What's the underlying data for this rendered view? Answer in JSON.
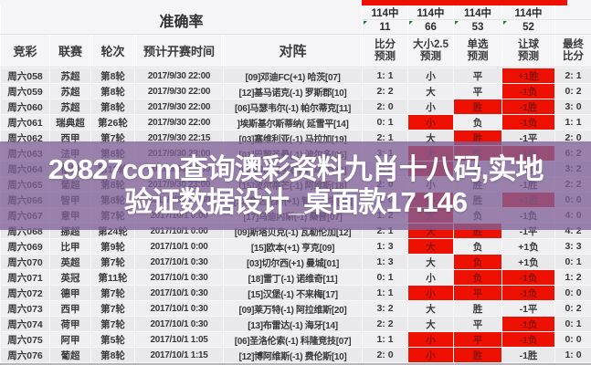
{
  "accuracy": {
    "label": "准确率",
    "total_label": "114中",
    "values": [
      "11",
      "66",
      "53",
      "52"
    ]
  },
  "columns": {
    "jc": "竞彩",
    "league": "联赛",
    "round": "轮次",
    "time": "预计开赛时间",
    "match": "对阵",
    "sp": [
      "比分",
      "预测"
    ],
    "dx": [
      "大小2.5",
      "预测"
    ],
    "dc": [
      "单选",
      "预测"
    ],
    "rq": [
      "让球",
      "预测"
    ],
    "final": [
      "最终",
      "比分"
    ]
  },
  "watermark": {
    "line1": "29827cσm查询澳彩资料九肖十八码,实地",
    "line2": "验证数据设计_桌面款17.146"
  },
  "colors": {
    "hit_cell": "#ee1000",
    "top_bar": "#ee1000",
    "watermark_band": "#806299",
    "comment_marker": "#1e7d32"
  },
  "rows": [
    {
      "jc": "周六058",
      "league": "苏超",
      "round": "第8轮",
      "time": "2017/9/30 22:00",
      "match": "[09]邓迪FC(+1)  哈茨[07]",
      "sp": "1: 1",
      "dx": "小",
      "dc": "平",
      "rq": "+1胜",
      "final": "2: 1",
      "hit": [
        "rq"
      ]
    },
    {
      "jc": "周六059",
      "league": "苏超",
      "round": "第8轮",
      "time": "2017/9/30 22:00",
      "match": "[12]基马诺克(-1)  罗斯郡[10]",
      "sp": "2: 2",
      "dx": "大",
      "dc": "平",
      "rq": "-1负",
      "final": "0: 2",
      "hit": [
        "rq"
      ]
    },
    {
      "jc": "周六060",
      "league": "苏超",
      "round": "第8轮",
      "time": "2017/9/30 22:00",
      "match": "[06]马瑟韦尔(-1)  帕尔蒂克[11]",
      "sp": "2: 0",
      "dx": "小",
      "dc": "胜",
      "rq": "-1胜",
      "final": "3: 0",
      "hit": [
        "dc",
        "rq"
      ]
    },
    {
      "jc": "周六061",
      "league": "瑞典超",
      "round": "第26轮",
      "time": "2017/9/30 22:00",
      "match": "]埃斯基尔斯蒂纳(  延雪平[14]",
      "sp": "0: 1",
      "dx": "小",
      "dc": "负",
      "rq": "-1负",
      "final": "1: 1",
      "hit": [
        "dx",
        "rq"
      ]
    },
    {
      "jc": "周六062",
      "league": "西甲",
      "round": "第7轮",
      "time": "2017/9/30 22:15",
      "match": "[03]塞维利亚(-1)  马拉加[19]",
      "sp": "2: 1",
      "dx": "大",
      "dc": "胜",
      "rq": "-1平",
      "final": "2: 0",
      "hit": [
        "dc"
      ]
    },
    {
      "jc": "周六063",
      "league": "法甲",
      "round": "第8轮",
      "time": "2017/9/30 23:00",
      "match": "[01]巴黎圣曼(-1)  波尔多[06]",
      "sp": "3: 1",
      "dx": "大",
      "dc": "胜",
      "rq": "-1胜",
      "final": "6: 2",
      "hit": [
        "dx",
        "dc",
        "rq"
      ]
    },
    {
      "jc": "周六064",
      "league": "俄超",
      "round": "第12轮",
      "time": "2017/9/30 23:00",
      "match": "[08]喀山红宝石(-1)  乌法[10]",
      "sp": "1: 2",
      "dx": "大",
      "dc": "负",
      "rq": "+1负",
      "final": "3: 2",
      "hit": [
        "dx"
      ]
    },
    {
      "jc": "周六065",
      "league": "葡超",
      "round": "第8轮",
      "time": "2017/9/30 23:00",
      "match": "[15]波尔蒂芒(-1)  阿维斯[18]",
      "sp": "2: 0",
      "dx": "小",
      "dc": "胜",
      "rq": "-1胜",
      "final": "2: 2",
      "hit": []
    },
    {
      "jc": "周六066",
      "league": "智甲",
      "round": "第8轮",
      "time": "2017/9/30 23:30",
      "match": "[12]奥达克斯(+1)  智利大学[03]",
      "sp": "1: 0",
      "dx": "小",
      "dc": "胜",
      "rq": "+1胜",
      "final": "0: 0",
      "hit": [
        "dx",
        "rq"
      ]
    },
    {
      "jc": "周六067",
      "league": "意甲",
      "round": "第7轮",
      "time": "2017/10/1 0:00",
      "match": "[17]乌迪内斯(-1)  桑普[07]",
      "sp": "1: 2",
      "dx": "大",
      "dc": "负",
      "rq": "-1负",
      "final": "4: 0",
      "hit": [
        "dx"
      ]
    },
    {
      "jc": "周六068",
      "league": "挪超",
      "round": "第24轮",
      "time": "2017/10/1 0:00",
      "match": "[09]斯塔贝克(-1)  瓦勒伦加[12]",
      "sp": "2: 1",
      "dx": "大",
      "dc": "胜",
      "rq": "-1平",
      "final": "4: 2",
      "hit": [
        "dx",
        "dc"
      ]
    },
    {
      "jc": "周六069",
      "league": "比甲",
      "round": "第9轮",
      "time": "2017/10/1 0:00",
      "match": "[15]欧本(+1)  亨克[09]",
      "sp": "1: 3",
      "dx": "大",
      "dc": "负",
      "rq": "+1负",
      "final": "3: 3",
      "hit": [
        "dx"
      ]
    },
    {
      "jc": "周六070",
      "league": "英超",
      "round": "第7轮",
      "time": "2017/10/1 0:30",
      "match": "[03]切尔西(+1)  曼城[01]",
      "sp": "1: 3",
      "dx": "大",
      "dc": "负",
      "rq": "+1负",
      "final": "0: 1",
      "hit": [
        "dc"
      ]
    },
    {
      "jc": "周六071",
      "league": "英冠",
      "round": "第11轮",
      "time": "2017/10/1 0:30",
      "match": "[18]雷丁(-1)  诺维奇[11]",
      "sp": "0: 1",
      "dx": "小",
      "dc": "负",
      "rq": "-1负",
      "final": "1: 2",
      "hit": [
        "dc",
        "rq"
      ]
    },
    {
      "jc": "周六072",
      "league": "德甲",
      "round": "第7轮",
      "time": "2017/10/1 0:30",
      "match": "[15]汉堡(-1)  不来梅[17]",
      "sp": "1: 1",
      "dx": "小",
      "dc": "平",
      "rq": "-1负",
      "final": "0: 0",
      "hit": [
        "dx",
        "dc",
        "rq"
      ]
    },
    {
      "jc": "周六073",
      "league": "西甲",
      "round": "第7轮",
      "time": "2017/10/1 0:30",
      "match": "[09]莱万特(-1)  阿拉维斯[20]",
      "sp": "3: 2",
      "dx": "大",
      "dc": "胜",
      "rq": "-1平",
      "final": "0: 2",
      "hit": []
    },
    {
      "jc": "周六074",
      "league": "荷甲",
      "round": "第7轮",
      "time": "2017/10/1 0:30",
      "match": "[13]布雷达(-1)  海牙[14]",
      "sp": "2: 2",
      "dx": "大",
      "dc": "平",
      "rq": "-1负",
      "final": "0: 1",
      "hit": [
        "rq"
      ]
    },
    {
      "jc": "周六075",
      "league": "阿甲",
      "round": "第5轮",
      "time": "2017/10/1 1:05",
      "match": "[06]圣洛伦索(-1)  科隆竞技[07]",
      "sp": "1: 1",
      "dx": "小",
      "dc": "平",
      "rq": "-1负",
      "final": "0: 0",
      "hit": [
        "dx",
        "dc",
        "rq"
      ]
    },
    {
      "jc": "周六076",
      "league": "葡超",
      "round": "第8轮",
      "time": "2017/10/1 1:15",
      "match": "[12]博阿维斯(-1)  费伦斯[10]",
      "sp": "2: 0",
      "dx": "小",
      "dc": "胜",
      "rq": "-1胜",
      "final": "1: 0",
      "hit": [
        "dx",
        "dc"
      ]
    }
  ]
}
